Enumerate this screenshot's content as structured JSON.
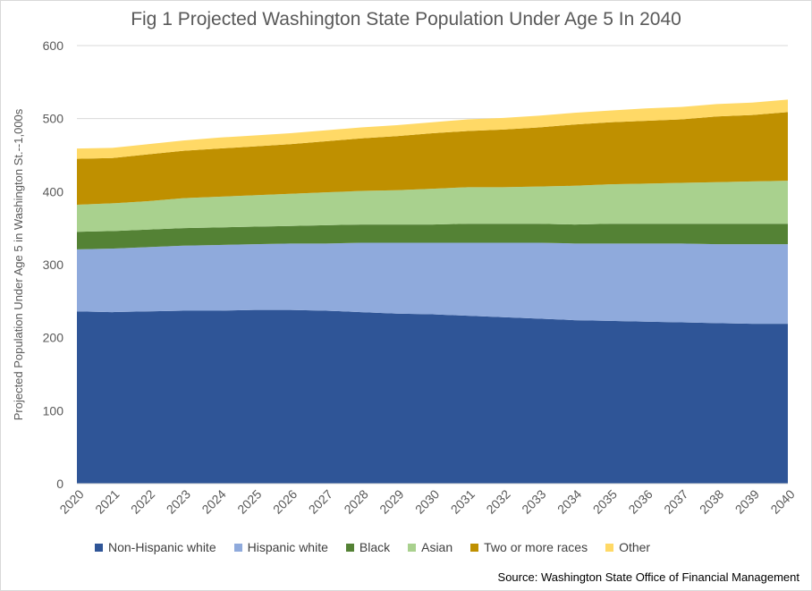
{
  "title": "Fig 1 Projected Washington State Population Under Age 5 In 2040",
  "source": "Source: Washington State Office of Financial Management",
  "chart_data": {
    "type": "area",
    "stacked": true,
    "title": "Fig 1 Projected Washington State Population Under Age 5 In 2040",
    "xlabel": "",
    "ylabel": "Projected Population Under Age 5 in Washington St.--1,000s",
    "ylim": [
      0,
      600
    ],
    "yticks": [
      0,
      100,
      200,
      300,
      400,
      500,
      600
    ],
    "grid": true,
    "legend_position": "bottom",
    "x": [
      "2020",
      "2021",
      "2022",
      "2023",
      "2024",
      "2025",
      "2026",
      "2027",
      "2028",
      "2029",
      "2030",
      "2031",
      "2032",
      "2033",
      "2034",
      "2035",
      "2036",
      "2037",
      "2038",
      "2039",
      "2040"
    ],
    "series": [
      {
        "name": "Non-Hispanic white",
        "color": "#2f5597",
        "values": [
          236,
          235,
          236,
          237,
          237,
          238,
          238,
          237,
          235,
          233,
          232,
          230,
          228,
          226,
          224,
          223,
          222,
          221,
          220,
          219,
          219
        ]
      },
      {
        "name": "Hispanic white",
        "color": "#8faadc",
        "values": [
          85,
          87,
          88,
          89,
          90,
          90,
          91,
          92,
          95,
          97,
          98,
          100,
          102,
          104,
          105,
          106,
          107,
          108,
          108,
          109,
          109
        ]
      },
      {
        "name": "Black",
        "color": "#548235",
        "values": [
          24,
          24,
          24,
          24,
          24,
          24,
          24,
          25,
          25,
          25,
          25,
          26,
          26,
          26,
          26,
          27,
          27,
          27,
          28,
          28,
          28
        ]
      },
      {
        "name": "Asian",
        "color": "#a9d18e",
        "values": [
          37,
          38,
          39,
          41,
          42,
          43,
          44,
          45,
          46,
          47,
          49,
          50,
          50,
          51,
          53,
          54,
          55,
          56,
          57,
          58,
          59
        ]
      },
      {
        "name": "Two or more races",
        "color": "#bf9000",
        "values": [
          63,
          62,
          64,
          65,
          66,
          67,
          68,
          70,
          72,
          74,
          76,
          77,
          79,
          81,
          84,
          85,
          86,
          87,
          90,
          91,
          94
        ]
      },
      {
        "name": "Other",
        "color": "#ffd966",
        "values": [
          14,
          14,
          14,
          14,
          15,
          15,
          15,
          15,
          15,
          15,
          15,
          16,
          16,
          16,
          16,
          16,
          17,
          17,
          17,
          17,
          17
        ]
      }
    ]
  }
}
